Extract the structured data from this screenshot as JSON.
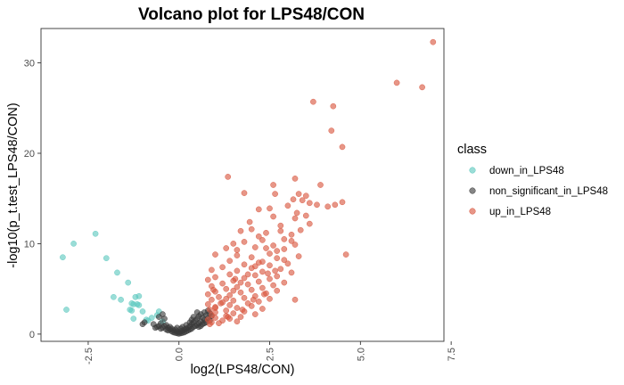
{
  "chart_data": {
    "type": "scatter",
    "title": "Volcano plot for LPS48/CON",
    "xlabel": "log2(LPS48/CON)",
    "ylabel": "-log10(p_t.test_LPS48/CON)",
    "xlim": [
      -3.8,
      7.3
    ],
    "ylim": [
      -0.8,
      33.8
    ],
    "x_ticks": [
      -2.5,
      0.0,
      2.5,
      5.0,
      7.5
    ],
    "x_tick_labels": [
      "-2.5",
      "0.0",
      "2.5",
      "5.0",
      "7.5"
    ],
    "y_ticks": [
      0,
      10,
      20,
      30
    ],
    "y_tick_labels": [
      "0",
      "10",
      "20",
      "30"
    ],
    "grid": false,
    "legend": {
      "title": "class",
      "position": "right"
    },
    "series": [
      {
        "name": "down_in_LPS48",
        "color": "#5CC8BE",
        "points": [
          [
            -3.2,
            8.5
          ],
          [
            -2.9,
            10.0
          ],
          [
            -2.3,
            11.1
          ],
          [
            -3.1,
            2.7
          ],
          [
            -2.0,
            8.4
          ],
          [
            -1.7,
            6.8
          ],
          [
            -1.4,
            5.7
          ],
          [
            -1.8,
            4.1
          ],
          [
            -1.6,
            3.8
          ],
          [
            -1.2,
            4.1
          ],
          [
            -1.1,
            4.2
          ],
          [
            -1.3,
            3.4
          ],
          [
            -1.25,
            3.3
          ],
          [
            -1.15,
            3.3
          ],
          [
            -1.1,
            3.2
          ],
          [
            -1.3,
            2.6
          ],
          [
            -1.35,
            2.7
          ],
          [
            -1.0,
            2.5
          ],
          [
            -0.85,
            1.5
          ],
          [
            -0.75,
            1.8
          ],
          [
            -0.6,
            2.1
          ],
          [
            -0.45,
            1.4
          ],
          [
            -0.55,
            2.5
          ],
          [
            -0.9,
            1.6
          ],
          [
            -1.25,
            1.7
          ]
        ]
      },
      {
        "name": "non_significant_in_LPS48",
        "color": "#3A3A3A",
        "points": [
          [
            -1.0,
            1.1
          ],
          [
            -0.95,
            1.3
          ],
          [
            -0.55,
            1.9
          ],
          [
            -0.45,
            2.2
          ],
          [
            -0.4,
            1.7
          ],
          [
            -0.35,
            1.0
          ],
          [
            -0.7,
            1.1
          ],
          [
            -0.65,
            0.7
          ],
          [
            -0.6,
            0.8
          ],
          [
            -0.55,
            0.9
          ],
          [
            -0.5,
            1.2
          ],
          [
            -0.5,
            0.6
          ],
          [
            -0.45,
            0.7
          ],
          [
            -0.4,
            0.9
          ],
          [
            -0.35,
            0.5
          ],
          [
            -0.3,
            0.7
          ],
          [
            -0.3,
            0.4
          ],
          [
            -0.25,
            0.8
          ],
          [
            -0.25,
            0.5
          ],
          [
            -0.2,
            0.3
          ],
          [
            -0.2,
            0.6
          ],
          [
            -0.15,
            0.4
          ],
          [
            -0.15,
            0.2
          ],
          [
            -0.1,
            0.5
          ],
          [
            -0.1,
            0.15
          ],
          [
            -0.05,
            0.3
          ],
          [
            -0.05,
            0.1
          ],
          [
            0.0,
            0.2
          ],
          [
            0.0,
            0.05
          ],
          [
            0.05,
            0.3
          ],
          [
            0.05,
            0.1
          ],
          [
            0.1,
            0.15
          ],
          [
            0.1,
            0.4
          ],
          [
            0.15,
            0.2
          ],
          [
            0.15,
            0.5
          ],
          [
            0.2,
            0.3
          ],
          [
            0.2,
            0.6
          ],
          [
            0.25,
            0.4
          ],
          [
            0.25,
            0.7
          ],
          [
            0.3,
            0.5
          ],
          [
            0.3,
            0.9
          ],
          [
            0.35,
            0.6
          ],
          [
            0.35,
            1.1
          ],
          [
            0.4,
            0.8
          ],
          [
            0.4,
            1.3
          ],
          [
            0.45,
            0.9
          ],
          [
            0.45,
            1.5
          ],
          [
            0.5,
            1.0
          ],
          [
            0.5,
            1.7
          ],
          [
            0.55,
            1.2
          ],
          [
            0.55,
            2.0
          ],
          [
            0.6,
            1.4
          ],
          [
            0.6,
            2.2
          ],
          [
            0.65,
            1.1
          ],
          [
            0.65,
            1.8
          ],
          [
            0.7,
            1.6
          ],
          [
            0.7,
            2.4
          ],
          [
            0.75,
            1.3
          ],
          [
            0.75,
            2.1
          ],
          [
            0.8,
            1.8
          ],
          [
            0.8,
            2.6
          ],
          [
            0.85,
            1.5
          ],
          [
            0.85,
            2.3
          ],
          [
            0.9,
            2.0
          ],
          [
            0.2,
            1.0
          ],
          [
            0.3,
            1.3
          ],
          [
            0.4,
            1.9
          ],
          [
            -0.05,
            0.7
          ],
          [
            0.1,
            0.8
          ],
          [
            0.6,
            0.9
          ],
          [
            0.7,
            1.2
          ],
          [
            0.5,
            2.4
          ],
          [
            0.55,
            0.8
          ],
          [
            0.35,
            1.6
          ],
          [
            0.05,
            0.6
          ]
        ]
      },
      {
        "name": "up_in_LPS48",
        "color": "#D9553E",
        "points": [
          [
            7.0,
            32.3
          ],
          [
            6.0,
            27.8
          ],
          [
            6.7,
            27.3
          ],
          [
            3.7,
            25.7
          ],
          [
            4.25,
            25.2
          ],
          [
            4.2,
            22.5
          ],
          [
            4.5,
            20.7
          ],
          [
            1.35,
            17.4
          ],
          [
            3.2,
            17.2
          ],
          [
            2.6,
            16.5
          ],
          [
            3.9,
            16.5
          ],
          [
            2.65,
            15.5
          ],
          [
            3.3,
            15.5
          ],
          [
            3.5,
            15.3
          ],
          [
            1.8,
            15.6
          ],
          [
            3.15,
            14.9
          ],
          [
            3.4,
            14.8
          ],
          [
            4.5,
            14.6
          ],
          [
            3.6,
            14.5
          ],
          [
            3.8,
            14.3
          ],
          [
            4.1,
            14.1
          ],
          [
            4.3,
            14.3
          ],
          [
            3.0,
            14.2
          ],
          [
            2.5,
            13.9
          ],
          [
            2.2,
            13.8
          ],
          [
            3.25,
            13.4
          ],
          [
            2.6,
            13.0
          ],
          [
            3.5,
            13.1
          ],
          [
            3.2,
            12.8
          ],
          [
            3.6,
            12.2
          ],
          [
            2.8,
            12.0
          ],
          [
            3.35,
            11.5
          ],
          [
            2.4,
            11.2
          ],
          [
            1.7,
            11.4
          ],
          [
            2.0,
            11.6
          ],
          [
            2.3,
            10.4
          ],
          [
            2.9,
            10.5
          ],
          [
            3.1,
            10.3
          ],
          [
            1.5,
            10.0
          ],
          [
            1.8,
            10.2
          ],
          [
            2.6,
            9.8
          ],
          [
            3.2,
            9.9
          ],
          [
            2.1,
            9.6
          ],
          [
            2.4,
            9.5
          ],
          [
            1.3,
            9.5
          ],
          [
            4.6,
            8.8
          ],
          [
            1.0,
            8.8
          ],
          [
            3.3,
            8.6
          ],
          [
            2.0,
            8.5
          ],
          [
            2.7,
            8.4
          ],
          [
            1.6,
            8.7
          ],
          [
            2.9,
            8.2
          ],
          [
            1.4,
            8.1
          ],
          [
            2.2,
            7.9
          ],
          [
            3.0,
            7.8
          ],
          [
            1.8,
            7.7
          ],
          [
            2.5,
            7.6
          ],
          [
            1.2,
            7.4
          ],
          [
            2.0,
            7.3
          ],
          [
            2.8,
            7.2
          ],
          [
            0.9,
            7.1
          ],
          [
            1.6,
            7.0
          ],
          [
            2.3,
            6.9
          ],
          [
            3.1,
            6.8
          ],
          [
            1.4,
            6.6
          ],
          [
            2.1,
            6.5
          ],
          [
            2.7,
            6.4
          ],
          [
            1.0,
            6.3
          ],
          [
            1.8,
            6.2
          ],
          [
            2.5,
            6.1
          ],
          [
            0.8,
            6.0
          ],
          [
            1.5,
            5.9
          ],
          [
            2.2,
            5.8
          ],
          [
            2.9,
            5.7
          ],
          [
            1.2,
            5.6
          ],
          [
            1.9,
            5.5
          ],
          [
            2.6,
            5.4
          ],
          [
            0.9,
            5.3
          ],
          [
            1.6,
            5.2
          ],
          [
            2.3,
            5.1
          ],
          [
            1.3,
            5.0
          ],
          [
            2.0,
            4.9
          ],
          [
            2.7,
            4.8
          ],
          [
            1.0,
            4.7
          ],
          [
            1.7,
            4.6
          ],
          [
            2.4,
            4.5
          ],
          [
            0.8,
            4.4
          ],
          [
            1.4,
            4.3
          ],
          [
            2.1,
            4.2
          ],
          [
            1.1,
            4.1
          ],
          [
            1.8,
            4.0
          ],
          [
            2.5,
            3.9
          ],
          [
            0.9,
            3.8
          ],
          [
            1.5,
            3.7
          ],
          [
            2.2,
            3.6
          ],
          [
            3.2,
            3.8
          ],
          [
            1.2,
            3.5
          ],
          [
            1.9,
            3.4
          ],
          [
            0.8,
            3.3
          ],
          [
            1.4,
            3.2
          ],
          [
            2.0,
            3.1
          ],
          [
            1.0,
            3.0
          ],
          [
            1.6,
            2.9
          ],
          [
            2.3,
            2.8
          ],
          [
            0.85,
            2.7
          ],
          [
            1.3,
            2.6
          ],
          [
            1.8,
            2.5
          ],
          [
            1.0,
            2.4
          ],
          [
            1.5,
            2.3
          ],
          [
            2.1,
            2.2
          ],
          [
            0.9,
            2.1
          ],
          [
            1.3,
            2.0
          ],
          [
            1.7,
            1.9
          ],
          [
            1.0,
            1.8
          ],
          [
            1.4,
            1.7
          ],
          [
            0.8,
            1.6
          ],
          [
            1.2,
            1.5
          ],
          [
            1.6,
            1.4
          ],
          [
            0.9,
            1.3
          ],
          [
            1.1,
            1.2
          ],
          [
            0.85,
            1.1
          ],
          [
            1.0,
            2.9
          ],
          [
            1.3,
            3.9
          ],
          [
            1.5,
            4.8
          ],
          [
            1.7,
            5.7
          ],
          [
            1.9,
            6.6
          ],
          [
            2.1,
            7.5
          ],
          [
            2.3,
            8.0
          ],
          [
            2.5,
            8.9
          ],
          [
            2.7,
            9.2
          ],
          [
            2.9,
            9.4
          ],
          [
            3.1,
            11.0
          ],
          [
            2.2,
            10.8
          ],
          [
            2.8,
            11.4
          ],
          [
            1.95,
            12.4
          ],
          [
            1.6,
            9.3
          ],
          [
            2.45,
            6.7
          ],
          [
            2.05,
            3.8
          ],
          [
            1.35,
            1.9
          ],
          [
            1.15,
            3.4
          ],
          [
            1.55,
            6.1
          ],
          [
            0.95,
            4.9
          ],
          [
            2.65,
            7.0
          ],
          [
            2.35,
            4.4
          ],
          [
            1.75,
            2.7
          ]
        ]
      }
    ]
  }
}
